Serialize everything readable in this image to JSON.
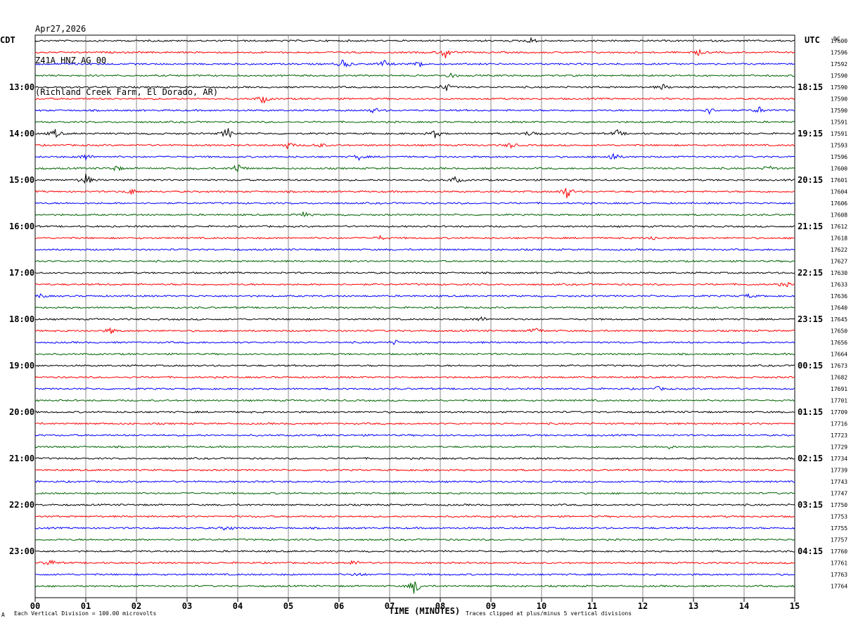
{
  "header": {
    "date": "Apr27,2026",
    "station": "Z41A HNZ AG 00",
    "location": "(Richland Creek Farm, El Dorado, AR)"
  },
  "labels": {
    "left_tz": "CDT",
    "right_tz": "UTC",
    "dc": "DC",
    "x_axis": "TIME (MINUTES)",
    "scale_note": "Each Vertical Division = 100.00 microvolts",
    "clip_note": "Traces clipped at plus/minus 5 vertical divisions",
    "corner_mark": "A"
  },
  "chart_data": {
    "type": "line",
    "title": "",
    "xlabel": "TIME (MINUTES)",
    "ylabel": "",
    "x_ticks": [
      "00",
      "01",
      "02",
      "03",
      "04",
      "05",
      "06",
      "07",
      "08",
      "09",
      "10",
      "11",
      "12",
      "13",
      "14",
      "15"
    ],
    "xlim": [
      0,
      15
    ],
    "grid": "vertical lines every minute",
    "trace_colors": [
      "#000000",
      "#ff0000",
      "#0000ff",
      "#006400"
    ],
    "left_hour_labels": [
      "13:00",
      "14:00",
      "15:00",
      "16:00",
      "17:00",
      "18:00",
      "19:00",
      "20:00",
      "21:00",
      "22:00",
      "23:00"
    ],
    "right_hour_labels": [
      "18:15",
      "19:15",
      "20:15",
      "21:15",
      "22:15",
      "23:15",
      "00:15",
      "01:15",
      "02:15",
      "03:15",
      "04:15"
    ],
    "dc_offsets": [
      "17600",
      "17596",
      "17592",
      "17590",
      "17590",
      "17590",
      "17590",
      "17591",
      "17591",
      "17593",
      "17596",
      "17600",
      "17601",
      "17604",
      "17606",
      "17608",
      "17612",
      "17618",
      "17622",
      "17627",
      "17630",
      "17633",
      "17636",
      "17640",
      "17645",
      "17650",
      "17656",
      "17664",
      "17673",
      "17682",
      "17691",
      "17701",
      "17709",
      "17716",
      "17723",
      "17729",
      "17734",
      "17739",
      "17743",
      "17747",
      "17750",
      "17753",
      "17755",
      "17757",
      "17760",
      "17761",
      "17763",
      "17764"
    ],
    "events": [
      {
        "trace": 0,
        "minute": 9.8,
        "amp": 4
      },
      {
        "trace": 1,
        "minute": 8.1,
        "amp": 9
      },
      {
        "trace": 1,
        "minute": 13.1,
        "amp": 4
      },
      {
        "trace": 2,
        "minute": 6.1,
        "amp": 8
      },
      {
        "trace": 2,
        "minute": 6.9,
        "amp": 5
      },
      {
        "trace": 2,
        "minute": 7.6,
        "amp": 5
      },
      {
        "trace": 3,
        "minute": 8.2,
        "amp": 4
      },
      {
        "trace": 4,
        "minute": 8.1,
        "amp": 7
      },
      {
        "trace": 4,
        "minute": 12.4,
        "amp": 4
      },
      {
        "trace": 5,
        "minute": 4.5,
        "amp": 6
      },
      {
        "trace": 6,
        "minute": 6.7,
        "amp": 4
      },
      {
        "trace": 6,
        "minute": 13.3,
        "amp": 5
      },
      {
        "trace": 6,
        "minute": 14.3,
        "amp": 5
      },
      {
        "trace": 8,
        "minute": 0.4,
        "amp": 6
      },
      {
        "trace": 8,
        "minute": 3.8,
        "amp": 9
      },
      {
        "trace": 8,
        "minute": 7.9,
        "amp": 6
      },
      {
        "trace": 8,
        "minute": 9.8,
        "amp": 6
      },
      {
        "trace": 8,
        "minute": 11.5,
        "amp": 5
      },
      {
        "trace": 9,
        "minute": 5.0,
        "amp": 5
      },
      {
        "trace": 9,
        "minute": 5.6,
        "amp": 4
      },
      {
        "trace": 9,
        "minute": 9.4,
        "amp": 4
      },
      {
        "trace": 10,
        "minute": 1.0,
        "amp": 5
      },
      {
        "trace": 10,
        "minute": 6.4,
        "amp": 4
      },
      {
        "trace": 10,
        "minute": 11.4,
        "amp": 7
      },
      {
        "trace": 11,
        "minute": 1.6,
        "amp": 4
      },
      {
        "trace": 11,
        "minute": 4.0,
        "amp": 8
      },
      {
        "trace": 11,
        "minute": 14.5,
        "amp": 5
      },
      {
        "trace": 12,
        "minute": 1.0,
        "amp": 9
      },
      {
        "trace": 12,
        "minute": 8.3,
        "amp": 5
      },
      {
        "trace": 13,
        "minute": 1.9,
        "amp": 4
      },
      {
        "trace": 13,
        "minute": 10.5,
        "amp": 10
      },
      {
        "trace": 15,
        "minute": 5.3,
        "amp": 4
      },
      {
        "trace": 17,
        "minute": 6.8,
        "amp": 3
      },
      {
        "trace": 17,
        "minute": 12.2,
        "amp": 3
      },
      {
        "trace": 21,
        "minute": 14.8,
        "amp": 4
      },
      {
        "trace": 22,
        "minute": 0.1,
        "amp": 3
      },
      {
        "trace": 22,
        "minute": 14.1,
        "amp": 3
      },
      {
        "trace": 24,
        "minute": 8.8,
        "amp": 4
      },
      {
        "trace": 25,
        "minute": 1.5,
        "amp": 4
      },
      {
        "trace": 25,
        "minute": 9.9,
        "amp": 5
      },
      {
        "trace": 26,
        "minute": 7.1,
        "amp": 3
      },
      {
        "trace": 30,
        "minute": 12.3,
        "amp": 3
      },
      {
        "trace": 35,
        "minute": 12.5,
        "amp": 3
      },
      {
        "trace": 42,
        "minute": 3.8,
        "amp": 4
      },
      {
        "trace": 45,
        "minute": 0.3,
        "amp": 5
      },
      {
        "trace": 45,
        "minute": 6.3,
        "amp": 4
      },
      {
        "trace": 46,
        "minute": 6.4,
        "amp": 3
      },
      {
        "trace": 47,
        "minute": 7.5,
        "amp": 13
      }
    ]
  }
}
